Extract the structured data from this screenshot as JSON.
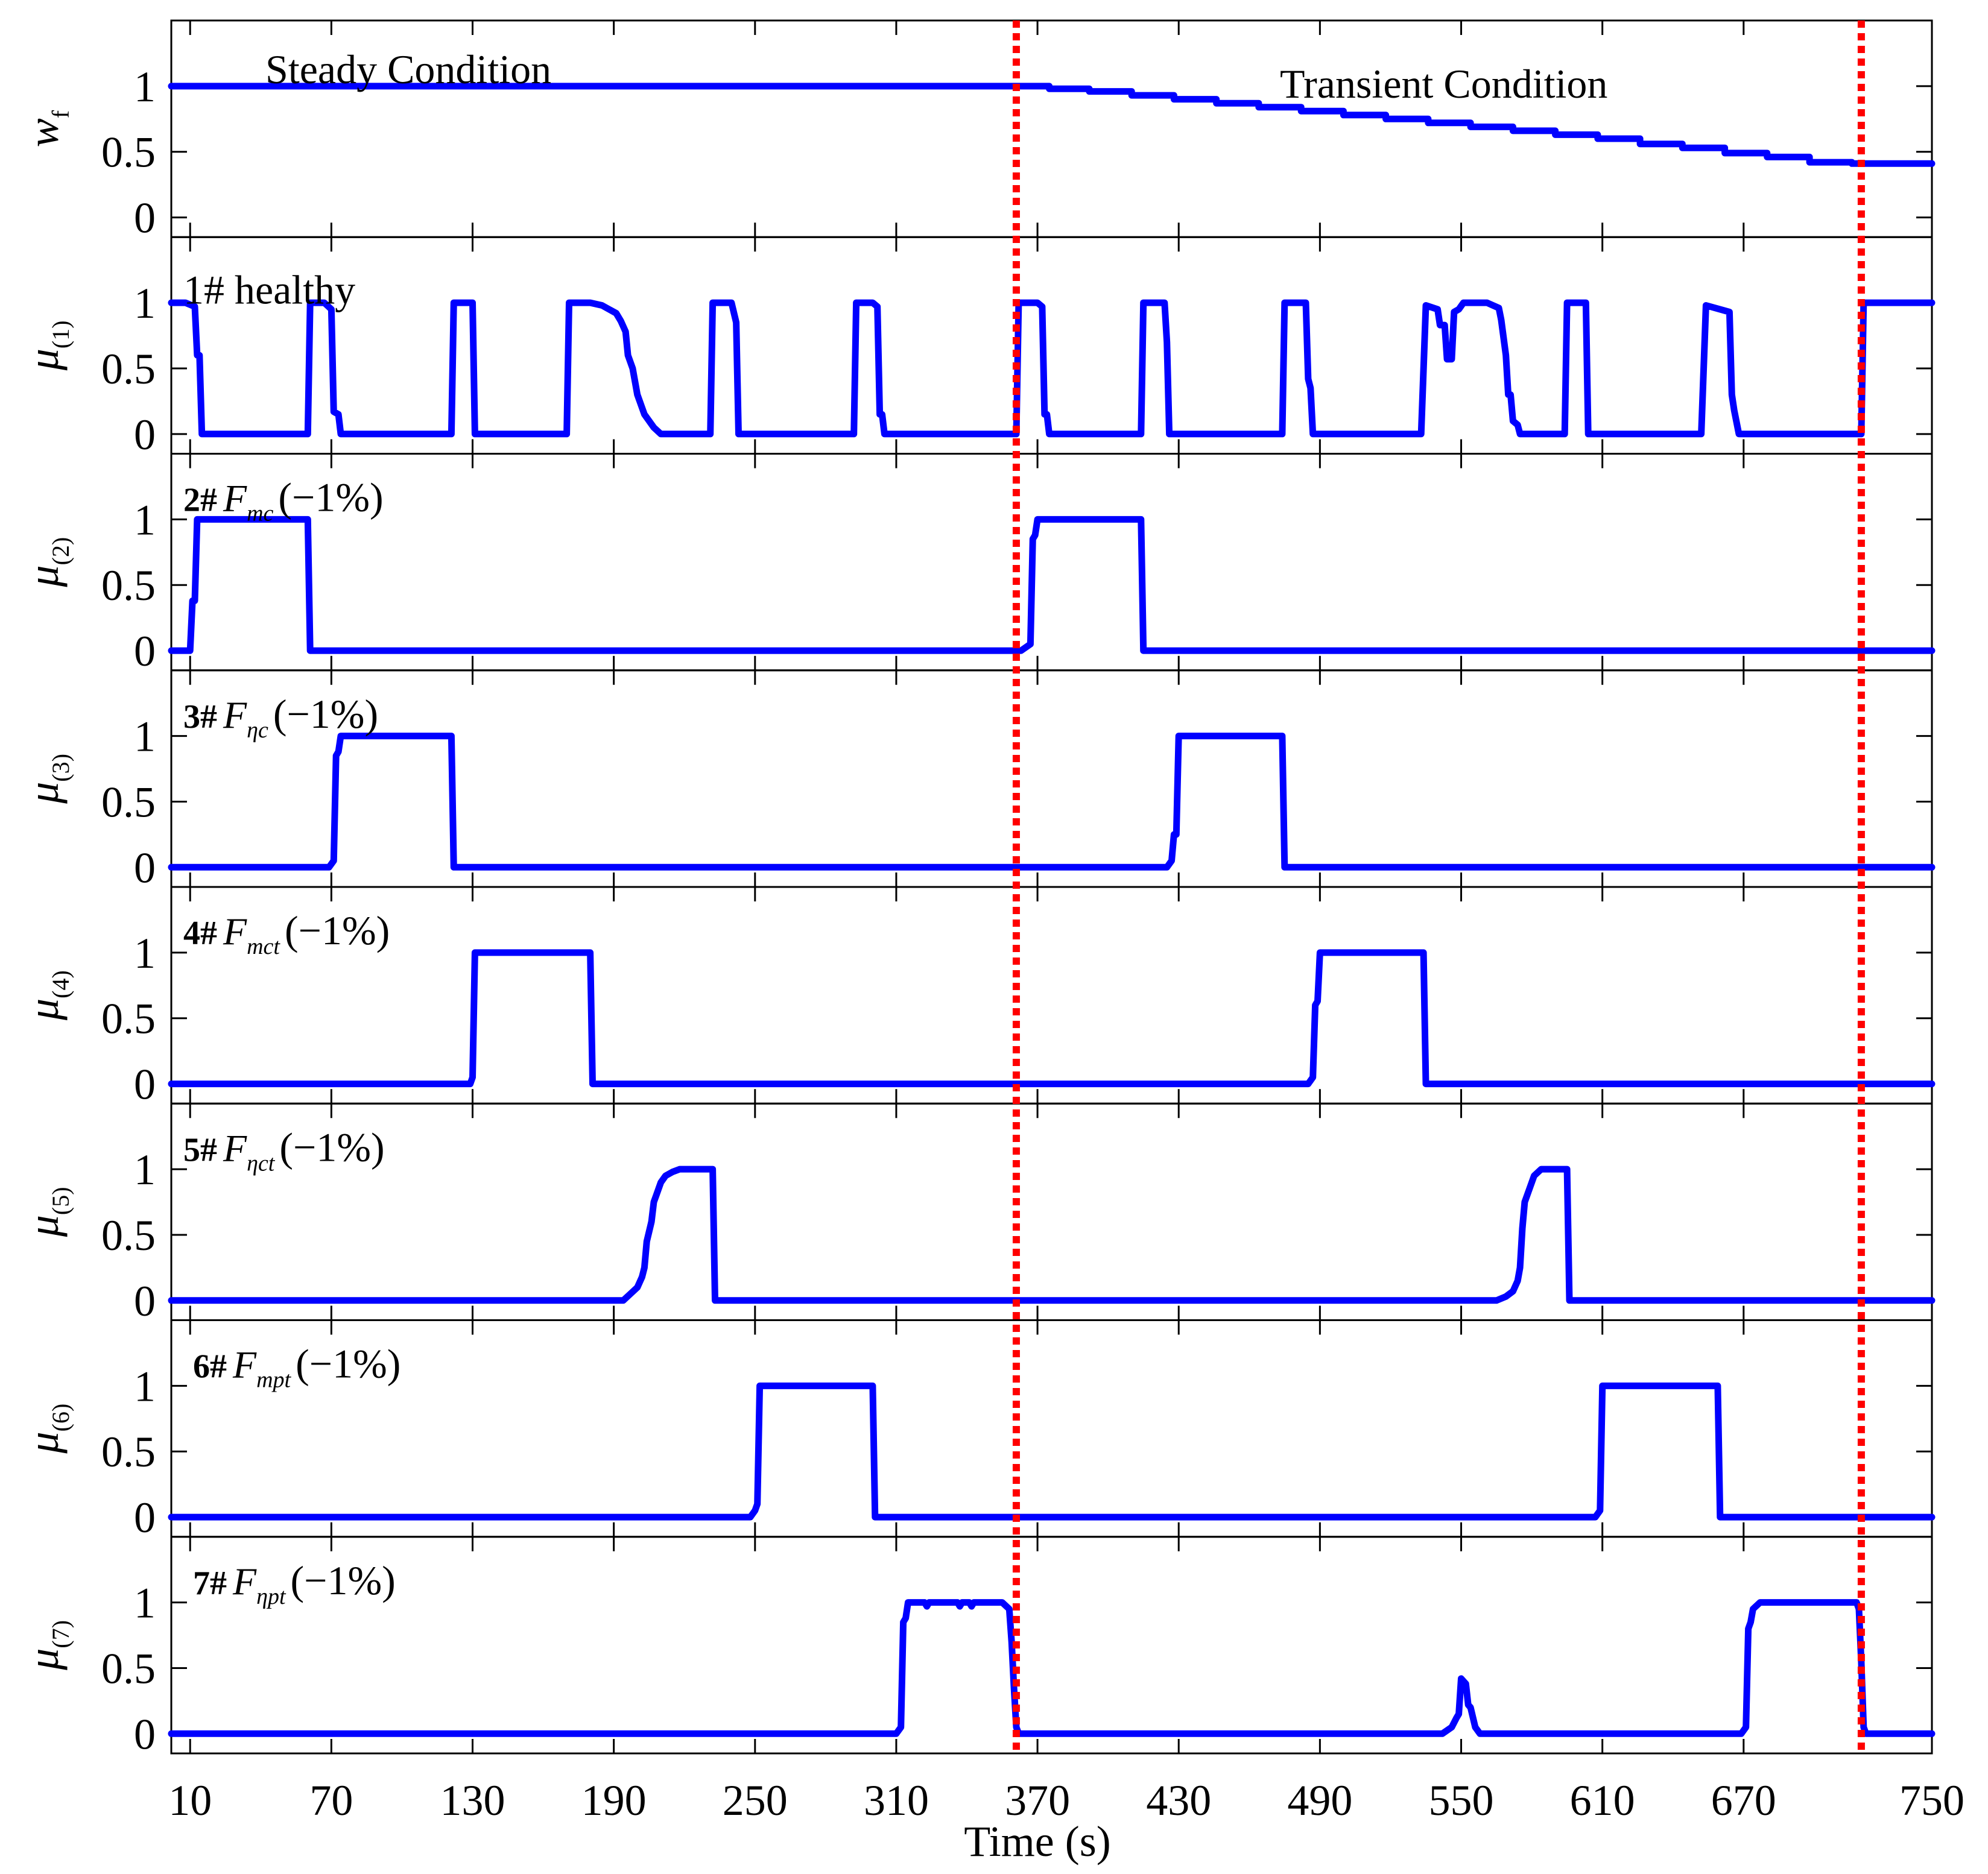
{
  "chart_data": {
    "type": "line",
    "xlabel": "Time (s)",
    "x_ticks": [
      10,
      70,
      130,
      190,
      250,
      310,
      370,
      430,
      490,
      550,
      610,
      670,
      750
    ],
    "xlim": [
      2,
      750
    ],
    "ylim": [
      -0.15,
      1.5
    ],
    "y_ticks": [
      0,
      0.5,
      1
    ],
    "y_tick_labels": [
      "0",
      "0.5",
      "1"
    ],
    "vlines": [
      361,
      720
    ],
    "colors": {
      "series": "#0000ff",
      "vline": "#ff0000",
      "axis": "#000000",
      "grid": "#808080"
    },
    "annotations": {
      "steady": "Steady Condition",
      "transient": "Transient Condition"
    },
    "panels": [
      {
        "id": "wf",
        "ylabel_main": "w",
        "ylabel_sub": "f",
        "label_num": "",
        "label_sym": "",
        "label_sub": "",
        "label_pct": "",
        "label_text": "",
        "points": [
          [
            2,
            1
          ],
          [
            361,
            1
          ],
          [
            375,
            1
          ],
          [
            375,
            0.98
          ],
          [
            392,
            0.98
          ],
          [
            392,
            0.96
          ],
          [
            410,
            0.96
          ],
          [
            410,
            0.93
          ],
          [
            428,
            0.93
          ],
          [
            428,
            0.9
          ],
          [
            446,
            0.9
          ],
          [
            446,
            0.87
          ],
          [
            464,
            0.87
          ],
          [
            464,
            0.84
          ],
          [
            482,
            0.84
          ],
          [
            482,
            0.81
          ],
          [
            500,
            0.81
          ],
          [
            500,
            0.78
          ],
          [
            518,
            0.78
          ],
          [
            518,
            0.75
          ],
          [
            536,
            0.75
          ],
          [
            536,
            0.72
          ],
          [
            554,
            0.72
          ],
          [
            554,
            0.69
          ],
          [
            572,
            0.69
          ],
          [
            572,
            0.66
          ],
          [
            590,
            0.66
          ],
          [
            590,
            0.63
          ],
          [
            608,
            0.63
          ],
          [
            608,
            0.6
          ],
          [
            626,
            0.6
          ],
          [
            626,
            0.56
          ],
          [
            644,
            0.56
          ],
          [
            644,
            0.53
          ],
          [
            662,
            0.53
          ],
          [
            662,
            0.49
          ],
          [
            680,
            0.49
          ],
          [
            680,
            0.46
          ],
          [
            698,
            0.46
          ],
          [
            698,
            0.42
          ],
          [
            716,
            0.42
          ],
          [
            716,
            0.41
          ],
          [
            750,
            0.41
          ]
        ]
      },
      {
        "id": "mu1",
        "ylabel_main": "μ",
        "ylabel_sub": "(1)",
        "label_num": "",
        "label_sym": "",
        "label_sub": "",
        "label_pct": "",
        "label_text": "1# healthy",
        "points": [
          [
            2,
            1
          ],
          [
            8,
            1
          ],
          [
            12,
            0.97
          ],
          [
            13,
            0.6
          ],
          [
            14,
            0.6
          ],
          [
            15,
            0
          ],
          [
            60,
            0
          ],
          [
            61,
            1
          ],
          [
            67,
            1
          ],
          [
            70,
            0.95
          ],
          [
            71,
            0.17
          ],
          [
            73,
            0.15
          ],
          [
            74,
            0
          ],
          [
            121,
            0
          ],
          [
            122,
            1
          ],
          [
            130,
            1
          ],
          [
            131,
            0
          ],
          [
            170,
            0
          ],
          [
            171,
            1
          ],
          [
            180,
            1
          ],
          [
            185,
            0.98
          ],
          [
            188,
            0.95
          ],
          [
            191,
            0.92
          ],
          [
            193,
            0.86
          ],
          [
            195,
            0.78
          ],
          [
            196,
            0.6
          ],
          [
            198,
            0.5
          ],
          [
            200,
            0.3
          ],
          [
            203,
            0.15
          ],
          [
            207,
            0.05
          ],
          [
            210,
            0
          ],
          [
            231,
            0
          ],
          [
            232,
            1
          ],
          [
            240,
            1
          ],
          [
            242,
            0.85
          ],
          [
            243,
            0
          ],
          [
            292,
            0
          ],
          [
            293,
            1
          ],
          [
            300,
            1
          ],
          [
            302,
            0.97
          ],
          [
            303,
            0.15
          ],
          [
            304,
            0.15
          ],
          [
            305,
            0
          ],
          [
            361,
            0
          ],
          [
            362,
            1
          ],
          [
            370,
            1
          ],
          [
            372,
            0.97
          ],
          [
            373,
            0.15
          ],
          [
            374,
            0.15
          ],
          [
            375,
            0
          ],
          [
            414,
            0
          ],
          [
            415,
            1
          ],
          [
            424,
            1
          ],
          [
            425,
            0.7
          ],
          [
            426,
            0
          ],
          [
            474,
            0
          ],
          [
            475,
            1
          ],
          [
            484,
            1
          ],
          [
            485,
            0.42
          ],
          [
            486,
            0.35
          ],
          [
            487,
            0
          ],
          [
            533,
            0
          ],
          [
            535,
            0.98
          ],
          [
            540,
            0.95
          ],
          [
            541,
            0.83
          ],
          [
            543,
            0.83
          ],
          [
            544,
            0.57
          ],
          [
            546,
            0.57
          ],
          [
            547,
            0.93
          ],
          [
            549,
            0.95
          ],
          [
            551,
            1
          ],
          [
            561,
            1
          ],
          [
            566,
            0.96
          ],
          [
            567,
            0.87
          ],
          [
            569,
            0.6
          ],
          [
            570,
            0.3
          ],
          [
            571,
            0.3
          ],
          [
            572,
            0.1
          ],
          [
            574,
            0.07
          ],
          [
            575,
            0
          ],
          [
            594,
            0
          ],
          [
            595,
            1
          ],
          [
            603,
            1
          ],
          [
            604,
            0
          ],
          [
            652,
            0
          ],
          [
            654,
            0.98
          ],
          [
            664,
            0.93
          ],
          [
            665,
            0.3
          ],
          [
            666,
            0.18
          ],
          [
            668,
            0
          ],
          [
            720,
            0
          ],
          [
            721,
            1
          ],
          [
            750,
            1
          ]
        ]
      },
      {
        "id": "mu2",
        "ylabel_main": "μ",
        "ylabel_sub": "(2)",
        "label_num": "2#",
        "label_sym": "F",
        "label_sub": "mc",
        "label_pct": "(−1%)",
        "label_text": "",
        "points": [
          [
            2,
            0
          ],
          [
            10,
            0
          ],
          [
            11,
            0.38
          ],
          [
            12,
            0.38
          ],
          [
            13,
            1
          ],
          [
            60,
            1
          ],
          [
            61,
            0
          ],
          [
            363,
            0
          ],
          [
            367,
            0.05
          ],
          [
            368,
            0.85
          ],
          [
            369,
            0.88
          ],
          [
            370,
            1
          ],
          [
            414,
            1
          ],
          [
            415,
            0
          ],
          [
            750,
            0
          ]
        ]
      },
      {
        "id": "mu3",
        "ylabel_main": "μ",
        "ylabel_sub": "(3)",
        "label_num": "3#",
        "label_sym": "F",
        "label_sub": "ηc",
        "label_pct": "(−1%)",
        "label_text": "",
        "points": [
          [
            2,
            0
          ],
          [
            69,
            0
          ],
          [
            71,
            0.05
          ],
          [
            72,
            0.85
          ],
          [
            73,
            0.88
          ],
          [
            74,
            1
          ],
          [
            121,
            1
          ],
          [
            122,
            0
          ],
          [
            425,
            0
          ],
          [
            427,
            0.05
          ],
          [
            428,
            0.25
          ],
          [
            429,
            0.25
          ],
          [
            430,
            1
          ],
          [
            474,
            1
          ],
          [
            475,
            0
          ],
          [
            750,
            0
          ]
        ]
      },
      {
        "id": "mu4",
        "ylabel_main": "μ",
        "ylabel_sub": "(4)",
        "label_num": "4#",
        "label_sym": "F",
        "label_sub": "mct",
        "label_pct": "(−1%)",
        "label_text": "",
        "points": [
          [
            2,
            0
          ],
          [
            129,
            0
          ],
          [
            130,
            0.05
          ],
          [
            131,
            1
          ],
          [
            180,
            1
          ],
          [
            181,
            0
          ],
          [
            485,
            0
          ],
          [
            487,
            0.05
          ],
          [
            488,
            0.6
          ],
          [
            489,
            0.63
          ],
          [
            490,
            1
          ],
          [
            534,
            1
          ],
          [
            535,
            0
          ],
          [
            750,
            0
          ]
        ]
      },
      {
        "id": "mu5",
        "ylabel_main": "μ",
        "ylabel_sub": "(5)",
        "label_num": "5#",
        "label_sym": "F",
        "label_sub": "ηct",
        "label_pct": "(−1%)",
        "label_text": "",
        "points": [
          [
            2,
            0
          ],
          [
            194,
            0
          ],
          [
            197,
            0.05
          ],
          [
            200,
            0.1
          ],
          [
            202,
            0.18
          ],
          [
            203,
            0.25
          ],
          [
            204,
            0.45
          ],
          [
            206,
            0.6
          ],
          [
            207,
            0.75
          ],
          [
            208,
            0.8
          ],
          [
            210,
            0.9
          ],
          [
            212,
            0.95
          ],
          [
            215,
            0.98
          ],
          [
            218,
            1
          ],
          [
            232,
            1
          ],
          [
            233,
            0
          ],
          [
            565,
            0
          ],
          [
            569,
            0.03
          ],
          [
            572,
            0.07
          ],
          [
            574,
            0.15
          ],
          [
            575,
            0.25
          ],
          [
            576,
            0.55
          ],
          [
            577,
            0.75
          ],
          [
            579,
            0.85
          ],
          [
            581,
            0.95
          ],
          [
            584,
            1
          ],
          [
            595,
            1
          ],
          [
            596,
            0
          ],
          [
            750,
            0
          ]
        ]
      },
      {
        "id": "mu6",
        "ylabel_main": "μ",
        "ylabel_sub": "(6)",
        "label_num": "6#",
        "label_sym": "F",
        "label_sub": "mpt",
        "label_pct": "(−1%)",
        "label_text": "",
        "points": [
          [
            2,
            0
          ],
          [
            248,
            0
          ],
          [
            250,
            0.05
          ],
          [
            251,
            0.1
          ],
          [
            252,
            1
          ],
          [
            300,
            1
          ],
          [
            301,
            0
          ],
          [
            607,
            0
          ],
          [
            609,
            0.05
          ],
          [
            610,
            1
          ],
          [
            659,
            1
          ],
          [
            660,
            0
          ],
          [
            750,
            0
          ]
        ]
      },
      {
        "id": "mu7",
        "ylabel_main": "μ",
        "ylabel_sub": "(7)",
        "label_num": "7#",
        "label_sym": "F",
        "label_sub": "ηpt",
        "label_pct": "(−1%)",
        "label_text": "",
        "points": [
          [
            2,
            0
          ],
          [
            310,
            0
          ],
          [
            312,
            0.05
          ],
          [
            313,
            0.85
          ],
          [
            314,
            0.88
          ],
          [
            315,
            1
          ],
          [
            322,
            1
          ],
          [
            323,
            0.97
          ],
          [
            324,
            1
          ],
          [
            336,
            1
          ],
          [
            337,
            0.97
          ],
          [
            338,
            1
          ],
          [
            341,
            1
          ],
          [
            342,
            0.97
          ],
          [
            343,
            1
          ],
          [
            355,
            1
          ],
          [
            358,
            0.95
          ],
          [
            359,
            0.7
          ],
          [
            360,
            0.35
          ],
          [
            361,
            0.05
          ],
          [
            362,
            0
          ],
          [
            542,
            0
          ],
          [
            546,
            0.05
          ],
          [
            548,
            0.12
          ],
          [
            549,
            0.15
          ],
          [
            550,
            0.42
          ],
          [
            552,
            0.38
          ],
          [
            553,
            0.22
          ],
          [
            554,
            0.2
          ],
          [
            556,
            0.05
          ],
          [
            558,
            0
          ],
          [
            669,
            0
          ],
          [
            671,
            0.05
          ],
          [
            672,
            0.8
          ],
          [
            673,
            0.85
          ],
          [
            674,
            0.95
          ],
          [
            677,
            1
          ],
          [
            718,
            1
          ],
          [
            719,
            0.95
          ],
          [
            720,
            0.55
          ],
          [
            721,
            0.05
          ],
          [
            722,
            0
          ],
          [
            750,
            0
          ]
        ]
      }
    ]
  }
}
